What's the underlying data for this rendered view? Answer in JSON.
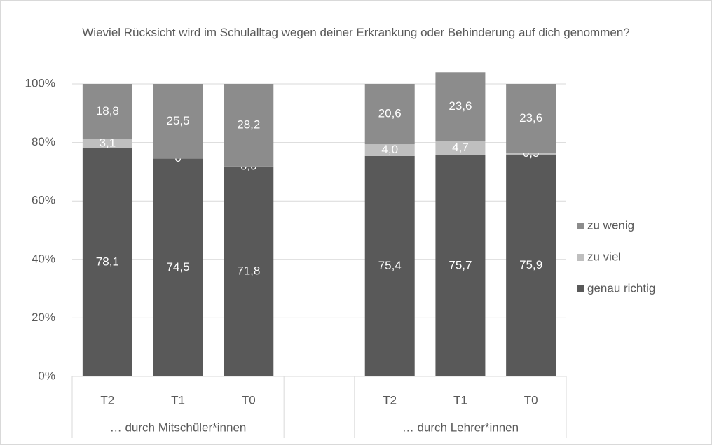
{
  "chart_data": {
    "type": "stacked_bar_100",
    "title": "Wieviel Rücksicht wird im Schulalltag wegen deiner Erkrankung oder Behinderung auf dich genommen?",
    "categories": [
      "T2",
      "T1",
      "T0",
      null,
      "T2",
      "T1",
      "T0"
    ],
    "groups": [
      "… durch Mitschüler*innen",
      "… durch Lehrer*innen"
    ],
    "series": [
      {
        "name": "genau richtig",
        "color": "#595959",
        "values": [
          78.1,
          74.5,
          71.8,
          null,
          75.4,
          75.7,
          75.9
        ],
        "value_labels": [
          "78,1",
          "74,5",
          "71,8",
          null,
          "75,4",
          "75,7",
          "75,9"
        ]
      },
      {
        "name": "zu viel",
        "color": "#bfbfbf",
        "values": [
          3.1,
          0,
          0,
          null,
          4.0,
          4.7,
          0.5
        ],
        "value_labels": [
          "3,1",
          "0",
          "0,0",
          null,
          "4,0",
          "4,7",
          "0,5"
        ]
      },
      {
        "name": "zu wenig",
        "color": "#8c8c8c",
        "values": [
          18.8,
          25.5,
          28.2,
          null,
          20.6,
          23.6,
          23.6
        ],
        "value_labels": [
          "18,8",
          "25,5",
          "28,2",
          null,
          "20,6",
          "23,6",
          "23,6"
        ]
      }
    ],
    "ylim": [
      0,
      100
    ],
    "yticks": [
      {
        "value": 0,
        "label": "0%"
      },
      {
        "value": 20,
        "label": "20%"
      },
      {
        "value": 40,
        "label": "40%"
      },
      {
        "value": 60,
        "label": "60%"
      },
      {
        "value": 80,
        "label": "80%"
      },
      {
        "value": 100,
        "label": "100%"
      }
    ],
    "grid": true,
    "legend": "right"
  }
}
